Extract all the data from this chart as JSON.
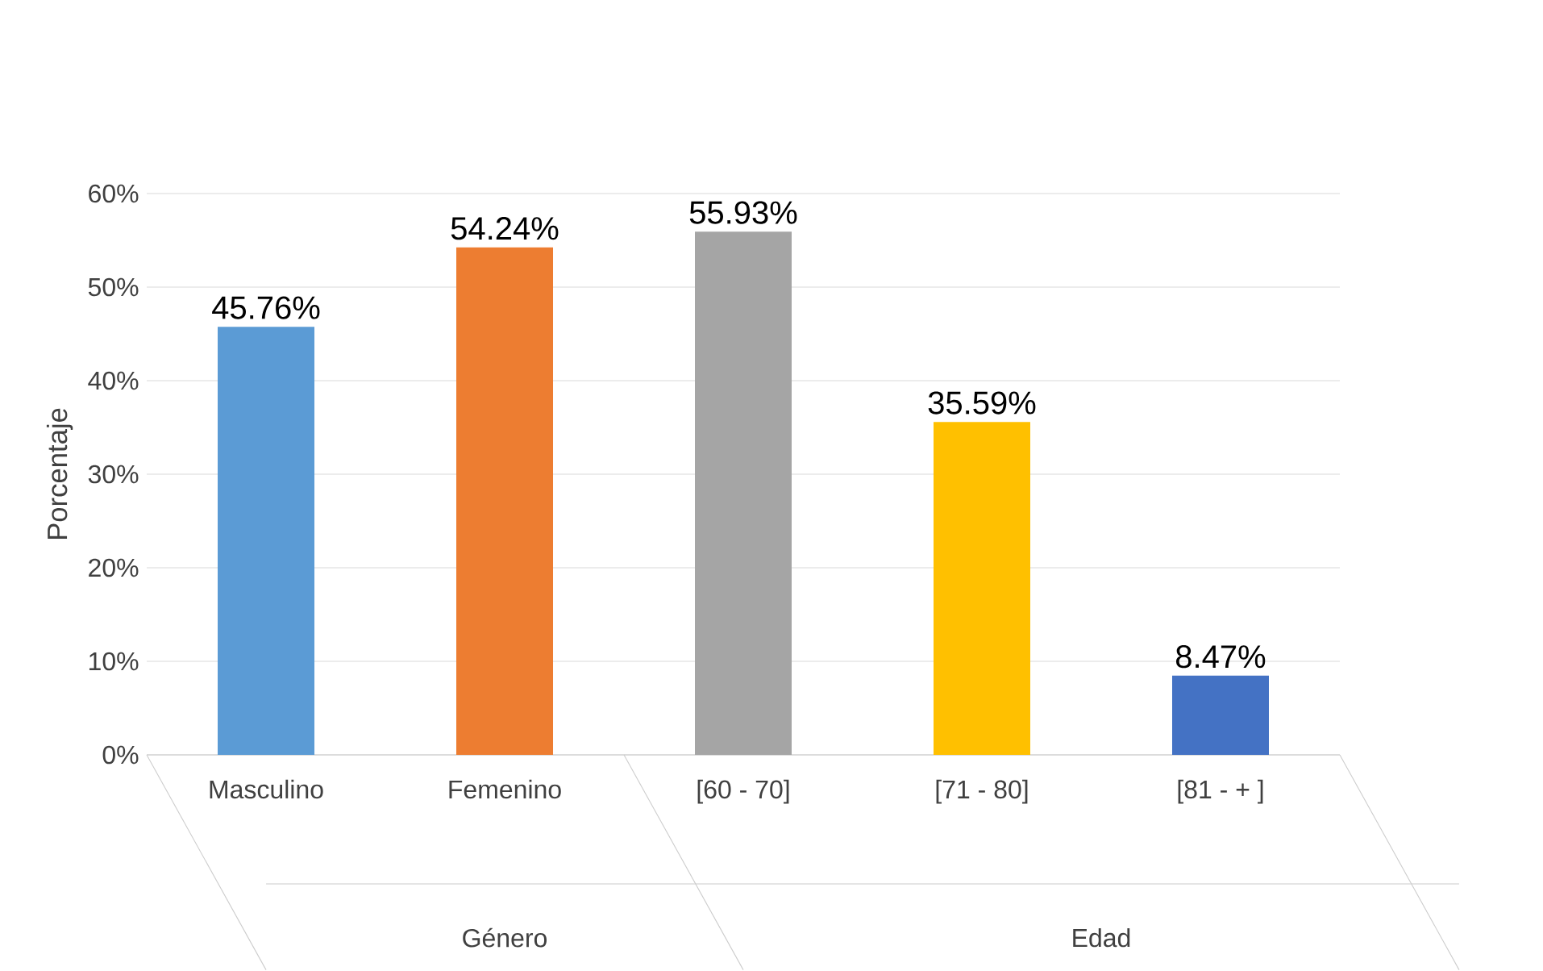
{
  "chart_data": {
    "type": "bar",
    "ylabel": "Porcentaje",
    "categories": [
      "Masculino",
      "Femenino",
      "[60 - 70]",
      "[71 - 80]",
      "[81 - + ]"
    ],
    "values": [
      45.76,
      54.24,
      55.93,
      35.59,
      8.47
    ],
    "colors": [
      "#5b9bd5",
      "#ed7d31",
      "#a5a5a5",
      "#ffc000",
      "#4472c4"
    ],
    "value_labels": [
      "45.76%",
      "54.24%",
      "55.93%",
      "35.59%",
      "8.47%"
    ],
    "ylim": [
      0,
      60
    ],
    "yticks": [
      {
        "value": 0,
        "label": "0%"
      },
      {
        "value": 10,
        "label": "10%"
      },
      {
        "value": 20,
        "label": "20%"
      },
      {
        "value": 30,
        "label": "30%"
      },
      {
        "value": 40,
        "label": "40%"
      },
      {
        "value": 50,
        "label": "50%"
      },
      {
        "value": 60,
        "label": "60%"
      }
    ],
    "grid": "y",
    "annotations": [
      "Género",
      "Edad"
    ]
  }
}
